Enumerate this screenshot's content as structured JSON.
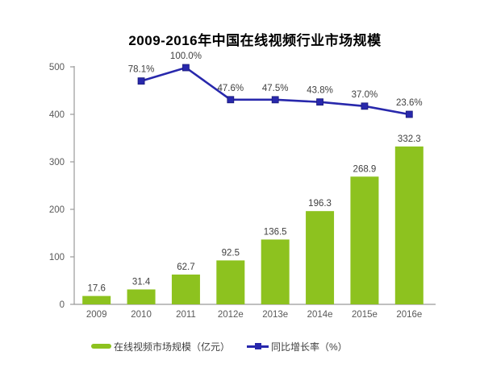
{
  "title": "2009-2016年中国在线视频行业市场规模",
  "chart_data": {
    "type": "bar",
    "subtype": "combo-bar-line",
    "title": "2009-2016年中国在线视频行业市场规模",
    "categories": [
      "2009",
      "2010",
      "2011",
      "2012e",
      "2013e",
      "2014e",
      "2015e",
      "2016e"
    ],
    "series": [
      {
        "name": "在线视频市场规模（亿元）",
        "type": "bar",
        "color": "#8dc21f",
        "values": [
          17.6,
          31.4,
          62.7,
          92.5,
          136.5,
          196.3,
          268.9,
          332.3
        ]
      },
      {
        "name": "同比增长率（%）",
        "type": "line",
        "color": "#2828ac",
        "values": [
          null,
          78.1,
          100.0,
          47.6,
          47.5,
          43.8,
          37.0,
          23.6
        ]
      }
    ],
    "xlabel": "",
    "ylabel": "",
    "y_axis": {
      "min": 0,
      "max": 500,
      "ticks": [
        0,
        100,
        200,
        300,
        400,
        500
      ]
    },
    "grid": false,
    "legend_position": "bottom"
  },
  "colors": {
    "bar": "#8dc21f",
    "line": "#2828ac",
    "axis": "#999999",
    "tick_text": "#595959",
    "label_text": "#3f3f3f",
    "title_text": "#000000",
    "background": "#ffffff"
  }
}
